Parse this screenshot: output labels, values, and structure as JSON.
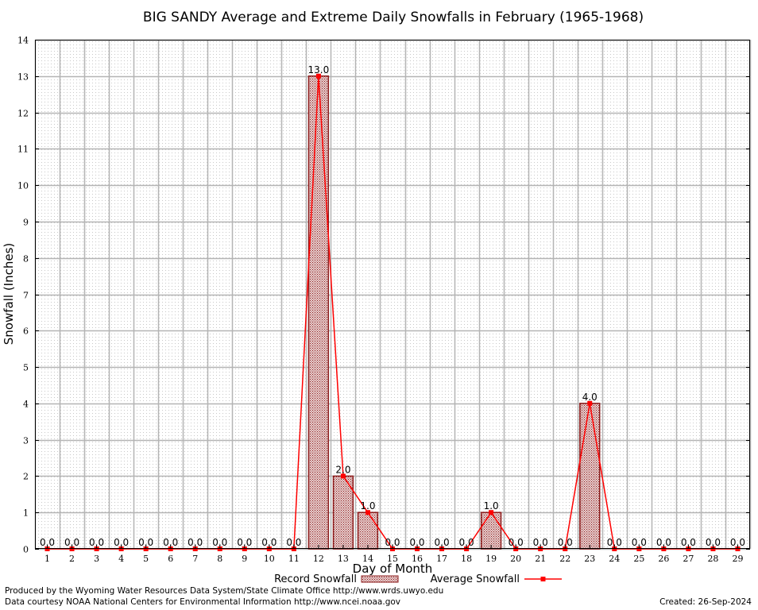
{
  "chart_data": {
    "type": "bar",
    "title": "BIG SANDY Average and Extreme Daily Snowfalls in February (1965-1968)",
    "xlabel": "Day of Month",
    "ylabel": "Snowfall (Inches)",
    "ylim": [
      0,
      14
    ],
    "yticks": [
      0,
      1,
      2,
      3,
      4,
      5,
      6,
      7,
      8,
      9,
      10,
      11,
      12,
      13,
      14
    ],
    "categories": [
      "1",
      "2",
      "3",
      "4",
      "5",
      "6",
      "7",
      "8",
      "9",
      "10",
      "11",
      "12",
      "13",
      "14",
      "15",
      "16",
      "17",
      "18",
      "19",
      "20",
      "21",
      "22",
      "23",
      "24",
      "25",
      "26",
      "27",
      "28",
      "29"
    ],
    "series": [
      {
        "name": "Record Snowfall",
        "type": "bar",
        "color": "#8b1a1a",
        "values": [
          0,
          0,
          0,
          0,
          0,
          0,
          0,
          0,
          0,
          0,
          0,
          13,
          2,
          1,
          0,
          0,
          0,
          0,
          1,
          0,
          0,
          0,
          4,
          0,
          0,
          0,
          0,
          0,
          0
        ],
        "labels": [
          "0.0",
          "0.0",
          "0.0",
          "0.0",
          "0.0",
          "0.0",
          "0.0",
          "0.0",
          "0.0",
          "0.0",
          "0.0",
          "13.0",
          "2.0",
          "1.0",
          "0.0",
          "0.0",
          "0.0",
          "0.0",
          "1.0",
          "0.0",
          "0.0",
          "0.0",
          "4.0",
          "0.0",
          "0.0",
          "0.0",
          "0.0",
          "0.0",
          "0.0"
        ]
      },
      {
        "name": "Average Snowfall",
        "type": "line",
        "color": "#ff0000",
        "values": [
          0,
          0,
          0,
          0,
          0,
          0,
          0,
          0,
          0,
          0,
          0,
          13,
          2,
          1,
          0,
          0,
          0,
          0,
          1,
          0,
          0,
          0,
          4,
          0,
          0,
          0,
          0,
          0,
          0
        ]
      }
    ],
    "grid": true,
    "legend_placement": "bottom-center"
  },
  "footer": {
    "credit1": "Produced by the Wyoming Water Resources Data System/State Climate Office http://www.wrds.uwyo.edu",
    "credit2": "Data courtesy NOAA National Centers for Environmental Information http://www.ncei.noaa.gov",
    "created": "Created:  26-Sep-2024"
  }
}
